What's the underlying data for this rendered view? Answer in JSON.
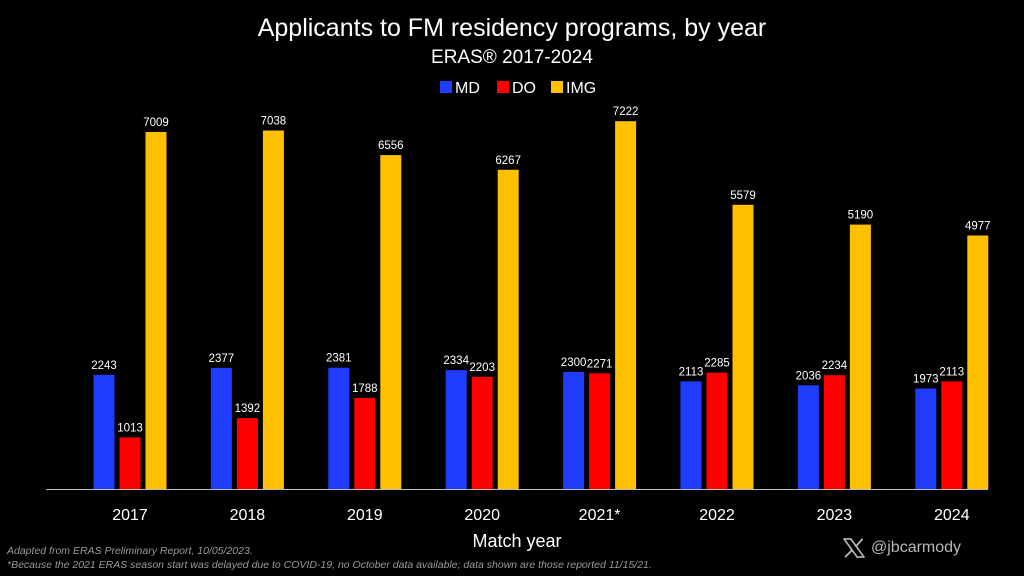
{
  "chart_data": {
    "type": "bar",
    "title": "Applicants to FM residency programs, by year",
    "subtitle": "ERAS® 2017-2024",
    "xlabel": "Match year",
    "ylabel": "",
    "ylim": [
      0,
      8000
    ],
    "grid": false,
    "legend_position": "top-center",
    "categories": [
      "2017",
      "2018",
      "2019",
      "2020",
      "2021*",
      "2022",
      "2023",
      "2024"
    ],
    "series": [
      {
        "name": "MD",
        "color": "#1f3cff",
        "values": [
          2243,
          2377,
          2381,
          2334,
          2300,
          2113,
          2036,
          1973
        ]
      },
      {
        "name": "DO",
        "color": "#ff0000",
        "values": [
          1013,
          1392,
          1788,
          2203,
          2271,
          2285,
          2234,
          2113
        ]
      },
      {
        "name": "IMG",
        "color": "#ffc000",
        "values": [
          7009,
          7038,
          6556,
          6267,
          7222,
          5579,
          5190,
          4977
        ]
      }
    ]
  },
  "footnotes": {
    "source": "Adapted from ERAS Preliminary Report, 10/05/2023.",
    "covid_note": "*Because the 2021 ERAS season start was delayed due to COVID-19, no October data available; data shown are those reported 11/15/21."
  },
  "attribution": {
    "handle": "@jbcarmody",
    "icon": "x-logo-icon"
  },
  "colors": {
    "background": "#000000",
    "text": "#ffffff",
    "footnote": "#9a9a9a"
  }
}
